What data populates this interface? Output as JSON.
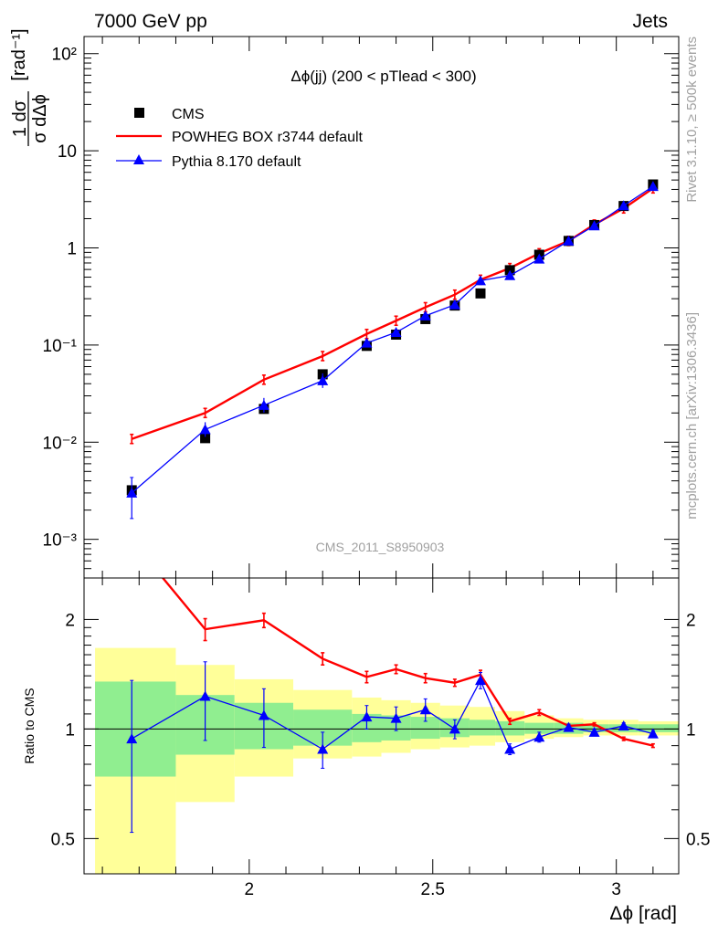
{
  "header": {
    "left": "7000 GeV pp",
    "right": "Jets"
  },
  "side_labels": {
    "rivet": "Rivet 3.1.10, ≥ 500k events",
    "source": "mcplots.cern.ch [arXiv:1306.3436]"
  },
  "watermark": "CMS_2011_S8950903",
  "chart_data": [
    {
      "type": "scatter",
      "panel": "main",
      "title": "Δϕ(jj) (200 < pTlead <  300)",
      "ylabel": "1/σ dσ/dΔϕ [rad⁻¹]",
      "yscale": "log",
      "ylim": [
        0.0004,
        150
      ],
      "xlim": [
        1.55,
        3.17
      ],
      "ytick_labels": [
        "10⁻³",
        "10⁻²",
        "10⁻¹",
        "1",
        "10",
        "10²"
      ],
      "legend": [
        "CMS",
        "POWHEG BOX r3744 default",
        "Pythia 8.170 default"
      ],
      "legend_placement": "top-left",
      "series": [
        {
          "name": "CMS",
          "color": "#000000",
          "marker": "square",
          "x": [
            1.68,
            1.88,
            2.04,
            2.2,
            2.32,
            2.4,
            2.48,
            2.56,
            2.63,
            2.71,
            2.79,
            2.87,
            2.94,
            3.02,
            3.1
          ],
          "y": [
            0.0032,
            0.011,
            0.022,
            0.05,
            0.098,
            0.128,
            0.185,
            0.255,
            0.34,
            0.59,
            0.85,
            1.18,
            1.72,
            2.7,
            4.5
          ]
        },
        {
          "name": "POWHEG BOX r3744 default",
          "color": "#ff0000",
          "marker": "line",
          "x": [
            1.68,
            1.88,
            2.04,
            2.2,
            2.32,
            2.4,
            2.48,
            2.56,
            2.63,
            2.71,
            2.79,
            2.87,
            2.94,
            3.02,
            3.1
          ],
          "y": [
            0.0108,
            0.02,
            0.044,
            0.077,
            0.13,
            0.178,
            0.245,
            0.33,
            0.47,
            0.62,
            0.88,
            1.18,
            1.74,
            2.55,
            4.1
          ]
        },
        {
          "name": "Pythia 8.170 default",
          "color": "#0000ff",
          "marker": "triangle",
          "x": [
            1.68,
            1.88,
            2.04,
            2.2,
            2.32,
            2.4,
            2.48,
            2.56,
            2.63,
            2.71,
            2.79,
            2.87,
            2.94,
            3.02,
            3.1
          ],
          "y": [
            0.003,
            0.0135,
            0.024,
            0.043,
            0.105,
            0.135,
            0.2,
            0.26,
            0.46,
            0.52,
            0.77,
            1.18,
            1.69,
            2.72,
            4.3
          ]
        }
      ]
    },
    {
      "type": "line",
      "panel": "ratio",
      "ylabel": "Ratio to CMS",
      "yscale": "log",
      "ylim": [
        0.4,
        2.6
      ],
      "xlim": [
        1.55,
        3.17
      ],
      "xlabel": "Δϕ [rad]",
      "xtick_labels": [
        "2",
        "2.5",
        "3"
      ],
      "ytick_labels": [
        "0.5",
        "1",
        "2"
      ],
      "band_edges": [
        1.55,
        1.8,
        1.96,
        2.12,
        2.28,
        2.36,
        2.44,
        2.52,
        2.6,
        2.67,
        2.75,
        2.83,
        2.91,
        2.98,
        3.06,
        3.17
      ],
      "bands": {
        "stat": {
          "color": "#90ee90",
          "lo": [
            0.74,
            0.85,
            0.88,
            0.9,
            0.92,
            0.93,
            0.94,
            0.95,
            0.96,
            0.96,
            0.97,
            0.97,
            0.98,
            0.98,
            0.98
          ],
          "hi": [
            1.35,
            1.24,
            1.18,
            1.13,
            1.1,
            1.09,
            1.08,
            1.07,
            1.06,
            1.05,
            1.04,
            1.04,
            1.03,
            1.03,
            1.03
          ]
        },
        "total": {
          "color": "#ffff99",
          "lo": [
            0.37,
            0.63,
            0.74,
            0.83,
            0.84,
            0.86,
            0.88,
            0.89,
            0.9,
            0.92,
            0.94,
            0.95,
            0.96,
            0.96,
            0.96
          ],
          "hi": [
            1.67,
            1.5,
            1.37,
            1.28,
            1.22,
            1.2,
            1.18,
            1.16,
            1.15,
            1.12,
            1.09,
            1.07,
            1.06,
            1.06,
            1.05
          ]
        }
      },
      "series": [
        {
          "name": "POWHEG BOX r3744 default",
          "color": "#ff0000",
          "x": [
            1.68,
            1.88,
            2.04,
            2.2,
            2.32,
            2.4,
            2.48,
            2.56,
            2.63,
            2.71,
            2.79,
            2.87,
            2.94,
            3.02,
            3.1
          ],
          "y": [
            3.3,
            1.88,
            1.99,
            1.56,
            1.39,
            1.46,
            1.38,
            1.34,
            1.41,
            1.05,
            1.11,
            1.02,
            1.03,
            0.94,
            0.9
          ],
          "err": [
            0,
            0.13,
            0.09,
            0.06,
            0.05,
            0.04,
            0.04,
            0.03,
            0.04,
            0.02,
            0.02,
            0.01,
            0.01,
            0.01,
            0.01
          ]
        },
        {
          "name": "Pythia 8.170 default",
          "color": "#0000ff",
          "x": [
            1.68,
            1.88,
            2.04,
            2.2,
            2.32,
            2.4,
            2.48,
            2.56,
            2.63,
            2.71,
            2.79,
            2.87,
            2.94,
            3.02,
            3.1
          ],
          "y": [
            0.94,
            1.23,
            1.09,
            0.88,
            1.08,
            1.07,
            1.13,
            1.0,
            1.36,
            0.88,
            0.95,
            1.01,
            0.98,
            1.02,
            0.97
          ],
          "err": [
            0.42,
            0.3,
            0.2,
            0.1,
            0.08,
            0.08,
            0.08,
            0.06,
            0.07,
            0.03,
            0.03,
            0.02,
            0.02,
            0.02,
            0.02
          ]
        }
      ]
    }
  ]
}
